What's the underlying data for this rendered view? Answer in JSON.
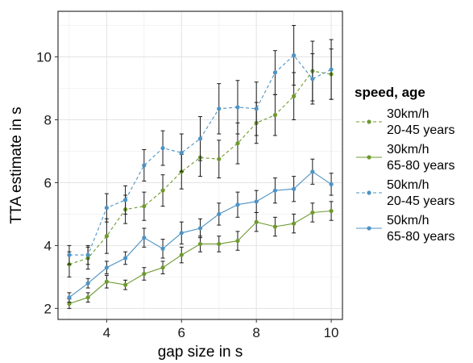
{
  "chart_data": {
    "type": "line",
    "xlabel": "gap size in s",
    "ylabel": "TTA estimate in s",
    "xlim": [
      2.7,
      10.3
    ],
    "ylim": [
      1.65,
      11.45
    ],
    "xticks": [
      4,
      6,
      8,
      10
    ],
    "yticks": [
      2,
      4,
      6,
      8,
      10
    ],
    "grid": true,
    "legend": {
      "title": "speed, age",
      "position": "right"
    },
    "x": [
      3,
      3.5,
      4,
      4.5,
      5,
      5.5,
      6,
      6.5,
      7,
      7.5,
      8,
      8.5,
      9,
      9.5,
      10
    ],
    "series": [
      {
        "name": "30km/h 20-45 years",
        "label_lines": [
          "30km/h",
          "20-45 years"
        ],
        "color": "#6e9a2e",
        "dash": "dashed",
        "values": [
          3.4,
          3.6,
          4.3,
          5.15,
          5.25,
          5.75,
          6.35,
          6.8,
          6.75,
          7.25,
          7.9,
          8.15,
          8.75,
          9.55,
          9.45
        ],
        "errors": [
          0.4,
          0.35,
          0.55,
          0.45,
          0.45,
          0.5,
          0.55,
          0.6,
          0.6,
          0.65,
          0.65,
          0.65,
          0.75,
          0.95,
          0.8
        ]
      },
      {
        "name": "30km/h 65-80 years",
        "label_lines": [
          "30km/h",
          "65-80 years"
        ],
        "color": "#6e9a2e",
        "dash": "solid",
        "values": [
          2.15,
          2.35,
          2.85,
          2.75,
          3.1,
          3.3,
          3.7,
          4.05,
          4.05,
          4.15,
          4.75,
          4.6,
          4.7,
          5.05,
          5.1
        ],
        "errors": [
          0.15,
          0.15,
          0.2,
          0.15,
          0.2,
          0.2,
          0.25,
          0.25,
          0.25,
          0.3,
          0.3,
          0.3,
          0.3,
          0.3,
          0.3
        ]
      },
      {
        "name": "50km/h 20-45 years",
        "label_lines": [
          "50km/h",
          "20-45 years"
        ],
        "color": "#4d93c4",
        "dash": "dashed",
        "values": [
          3.7,
          3.7,
          5.2,
          5.45,
          6.55,
          7.1,
          6.95,
          7.4,
          8.35,
          8.4,
          8.35,
          9.5,
          10.05,
          9.3,
          9.6
        ],
        "errors": [
          0.3,
          0.3,
          0.45,
          0.45,
          0.5,
          0.55,
          0.6,
          0.7,
          0.8,
          0.85,
          0.85,
          0.7,
          0.95,
          0.8,
          0.95
        ]
      },
      {
        "name": "50km/h 65-80 years",
        "label_lines": [
          "50km/h",
          "65-80 years"
        ],
        "color": "#4d93c4",
        "dash": "solid",
        "values": [
          2.35,
          2.8,
          3.3,
          3.6,
          4.25,
          3.9,
          4.4,
          4.55,
          5.0,
          5.3,
          5.4,
          5.75,
          5.8,
          6.35,
          5.95
        ],
        "errors": [
          0.15,
          0.15,
          0.2,
          0.2,
          0.3,
          0.3,
          0.35,
          0.3,
          0.35,
          0.4,
          0.35,
          0.4,
          0.4,
          0.4,
          0.35
        ]
      }
    ]
  }
}
